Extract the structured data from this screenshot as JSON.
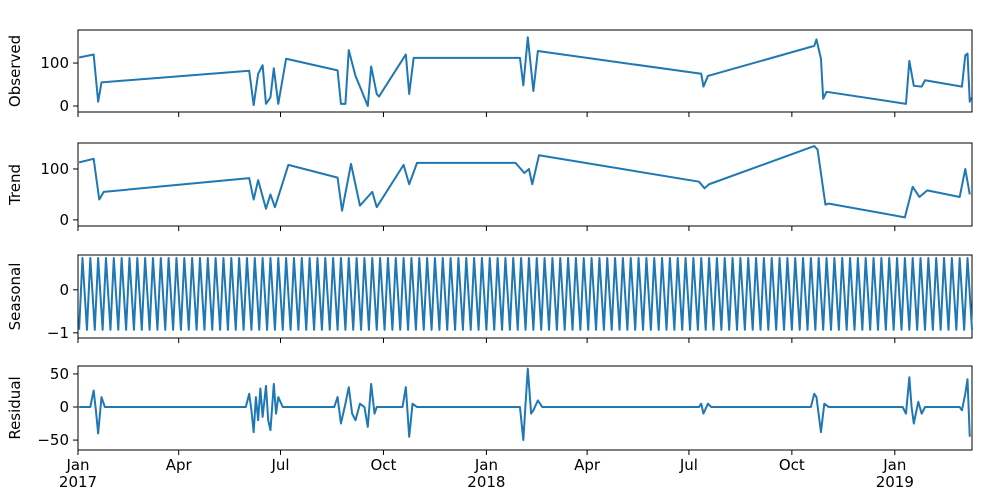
{
  "chart_data": [
    {
      "type": "line",
      "ylabel": "Observed",
      "color": "#1f77b4",
      "x": [
        "2017-01-02",
        "2017-01-15",
        "2017-01-19",
        "2017-01-22",
        "2017-06-03",
        "2017-06-07",
        "2017-06-11",
        "2017-06-15",
        "2017-06-18",
        "2017-06-22",
        "2017-06-25",
        "2017-06-29",
        "2017-07-06",
        "2017-08-21",
        "2017-08-24",
        "2017-08-28",
        "2017-08-31",
        "2017-09-06",
        "2017-09-10",
        "2017-09-17",
        "2017-09-20",
        "2017-09-25",
        "2017-09-27",
        "2017-10-21",
        "2017-10-24",
        "2017-10-28",
        "2018-01-31",
        "2018-02-03",
        "2018-02-07",
        "2018-02-12",
        "2018-02-16",
        "2018-07-12",
        "2018-07-14",
        "2018-07-18",
        "2018-10-21",
        "2018-10-23",
        "2018-10-27",
        "2018-10-29",
        "2018-11-01",
        "2019-01-11",
        "2019-01-14",
        "2019-01-18",
        "2019-01-25",
        "2019-01-28",
        "2019-03-02",
        "2019-03-05",
        "2019-03-07",
        "2019-03-09",
        "2019-03-10"
      ],
      "values": [
        113,
        120,
        10,
        55,
        82,
        2,
        75,
        95,
        5,
        20,
        88,
        5,
        110,
        83,
        5,
        5,
        130,
        70,
        45,
        0,
        92,
        28,
        22,
        120,
        28,
        112,
        112,
        48,
        160,
        35,
        128,
        75,
        45,
        70,
        140,
        155,
        110,
        17,
        33,
        5,
        105,
        47,
        45,
        60,
        45,
        118,
        122,
        10,
        20
      ],
      "xlim": [
        "2017-01-01",
        "2019-03-11"
      ],
      "ylim": [
        -14,
        177
      ],
      "yticks": [
        0,
        100
      ]
    },
    {
      "type": "line",
      "ylabel": "Trend",
      "color": "#1f77b4",
      "x": [
        "2017-01-02",
        "2017-01-15",
        "2017-01-20",
        "2017-01-24",
        "2017-06-03",
        "2017-06-07",
        "2017-06-11",
        "2017-06-18",
        "2017-06-22",
        "2017-06-26",
        "2017-07-08",
        "2017-08-21",
        "2017-08-25",
        "2017-09-02",
        "2017-09-10",
        "2017-09-21",
        "2017-09-25",
        "2017-10-19",
        "2017-10-24",
        "2017-10-31",
        "2018-01-27",
        "2018-02-04",
        "2018-02-08",
        "2018-02-11",
        "2018-02-17",
        "2018-07-10",
        "2018-07-15",
        "2018-07-19",
        "2018-10-21",
        "2018-10-24",
        "2018-10-31",
        "2018-11-03",
        "2019-01-10",
        "2019-01-17",
        "2019-01-23",
        "2019-01-30",
        "2019-02-28",
        "2019-03-05",
        "2019-03-09"
      ],
      "values": [
        113,
        120,
        40,
        55,
        82,
        40,
        78,
        22,
        50,
        25,
        108,
        83,
        18,
        110,
        28,
        55,
        25,
        108,
        70,
        112,
        112,
        92,
        100,
        70,
        127,
        75,
        62,
        70,
        145,
        138,
        30,
        32,
        5,
        65,
        45,
        58,
        45,
        100,
        50
      ],
      "xlim": [
        "2017-01-01",
        "2019-03-11"
      ],
      "ylim": [
        -12,
        151
      ],
      "yticks": [
        0,
        100
      ]
    },
    {
      "type": "line",
      "ylabel": "Seasonal",
      "color": "#1f77b4",
      "x": [
        "2017-01-02",
        "2017-01-05",
        "2017-01-09",
        "2017-01-12",
        "2017-01-16",
        "2017-01-19",
        "2017-01-23",
        "2017-01-26",
        "2017-01-30",
        "2017-02-02",
        "2017-02-06",
        "2017-02-09",
        "2017-02-13",
        "2017-02-16",
        "2017-02-20",
        "2017-02-23",
        "2017-02-27",
        "2017-03-02",
        "2017-03-06",
        "2017-03-09",
        "2017-03-13",
        "2017-03-16",
        "2017-03-20",
        "2017-03-23",
        "2017-03-27",
        "2017-03-30",
        "2017-04-03",
        "2017-04-06",
        "2017-04-10",
        "2017-04-13",
        "2017-04-17",
        "2017-04-20",
        "2017-04-24",
        "2017-04-27",
        "2017-05-01",
        "2017-05-04",
        "2017-05-08",
        "2017-05-11",
        "2017-05-15",
        "2017-05-18",
        "2017-05-22",
        "2017-05-25",
        "2017-05-29",
        "2017-06-01",
        "2017-06-05",
        "2017-06-08",
        "2017-06-12",
        "2017-06-15",
        "2017-06-19",
        "2017-06-22",
        "2017-06-26",
        "2017-06-29",
        "2017-07-03",
        "2017-07-06",
        "2017-07-10",
        "2017-07-13",
        "2017-07-17",
        "2017-07-20",
        "2017-07-24",
        "2017-07-27",
        "2017-07-31",
        "2017-08-03",
        "2017-08-07",
        "2017-08-10",
        "2017-08-14",
        "2017-08-17",
        "2017-08-21",
        "2017-08-24",
        "2017-08-28",
        "2017-08-31",
        "2017-09-04",
        "2017-09-07",
        "2017-09-11",
        "2017-09-14",
        "2017-09-18",
        "2017-09-21",
        "2017-09-25",
        "2017-09-28",
        "2017-10-02",
        "2017-10-05",
        "2017-10-09",
        "2017-10-12",
        "2017-10-16",
        "2017-10-19",
        "2017-10-23",
        "2017-10-26",
        "2017-10-30",
        "2017-11-02",
        "2017-11-06",
        "2017-11-09",
        "2017-11-13",
        "2017-11-16",
        "2017-11-20",
        "2017-11-23",
        "2017-11-27",
        "2017-11-30",
        "2017-12-04",
        "2017-12-07",
        "2017-12-11",
        "2017-12-14",
        "2017-12-18",
        "2017-12-21",
        "2017-12-25",
        "2017-12-28",
        "2018-01-01",
        "2018-01-04",
        "2018-01-08",
        "2018-01-11",
        "2018-01-15",
        "2018-01-18",
        "2018-01-22",
        "2018-01-25",
        "2018-01-29",
        "2018-02-01",
        "2018-02-05",
        "2018-02-08",
        "2018-02-12",
        "2018-02-15",
        "2018-02-19",
        "2018-02-22",
        "2018-02-26",
        "2018-03-01",
        "2018-03-05",
        "2018-03-08",
        "2018-03-12",
        "2018-03-15",
        "2018-03-19",
        "2018-03-22",
        "2018-03-26",
        "2018-03-29",
        "2018-04-02",
        "2018-04-05",
        "2018-04-09",
        "2018-04-12",
        "2018-04-16",
        "2018-04-19",
        "2018-04-23",
        "2018-04-26",
        "2018-04-30",
        "2018-05-03",
        "2018-05-07",
        "2018-05-10",
        "2018-05-14",
        "2018-05-17",
        "2018-05-21",
        "2018-05-24",
        "2018-05-28",
        "2018-05-31",
        "2018-06-04",
        "2018-06-07",
        "2018-06-11",
        "2018-06-14",
        "2018-06-18",
        "2018-06-21",
        "2018-06-25",
        "2018-06-28",
        "2018-07-02",
        "2018-07-05",
        "2018-07-09",
        "2018-07-12",
        "2018-07-16",
        "2018-07-19",
        "2018-07-23",
        "2018-07-26",
        "2018-07-30",
        "2018-08-02",
        "2018-08-06",
        "2018-08-09",
        "2018-08-13",
        "2018-08-16",
        "2018-08-20",
        "2018-08-23",
        "2018-08-27",
        "2018-08-30",
        "2018-09-03",
        "2018-09-06",
        "2018-09-10",
        "2018-09-13",
        "2018-09-17",
        "2018-09-20",
        "2018-09-24",
        "2018-09-27",
        "2018-10-01",
        "2018-10-04",
        "2018-10-08",
        "2018-10-11",
        "2018-10-15",
        "2018-10-18",
        "2018-10-22",
        "2018-10-25",
        "2018-10-29",
        "2018-11-01",
        "2018-11-05",
        "2018-11-08",
        "2018-11-12",
        "2018-11-15",
        "2018-11-19",
        "2018-11-22",
        "2018-11-26",
        "2018-11-29",
        "2018-12-03",
        "2018-12-06",
        "2018-12-10",
        "2018-12-13",
        "2018-12-17",
        "2018-12-20",
        "2018-12-24",
        "2018-12-27",
        "2018-12-31",
        "2019-01-03",
        "2019-01-07",
        "2019-01-10",
        "2019-01-14",
        "2019-01-17",
        "2019-01-21",
        "2019-01-24",
        "2019-01-28",
        "2019-01-31",
        "2019-02-04",
        "2019-02-07",
        "2019-02-11",
        "2019-02-14",
        "2019-02-18",
        "2019-02-21",
        "2019-02-25",
        "2019-02-28",
        "2019-03-04",
        "2019-03-07",
        "2019-03-11"
      ],
      "values": [
        -0.93,
        0.74,
        -0.93,
        0.74,
        -0.93,
        0.74,
        -0.93,
        0.74,
        -0.93,
        0.74,
        -0.93,
        0.74,
        -0.93,
        0.74,
        -0.93,
        0.74,
        -0.93,
        0.74,
        -0.93,
        0.74,
        -0.93,
        0.74,
        -0.93,
        0.74,
        -0.93,
        0.74,
        -0.93,
        0.74,
        -0.93,
        0.74,
        -0.93,
        0.74,
        -0.93,
        0.74,
        -0.93,
        0.74,
        -0.93,
        0.74,
        -0.93,
        0.74,
        -0.93,
        0.74,
        -0.93,
        0.74,
        -0.93,
        0.74,
        -0.93,
        0.74,
        -0.93,
        0.74,
        -0.93,
        0.74,
        -0.93,
        0.74,
        -0.93,
        0.74,
        -0.93,
        0.74,
        -0.93,
        0.74,
        -0.93,
        0.74,
        -0.93,
        0.74,
        -0.93,
        0.74,
        -0.93,
        0.74,
        -0.93,
        0.74,
        -0.93,
        0.74,
        -0.93,
        0.74,
        -0.93,
        0.74,
        -0.93,
        0.74,
        -0.93,
        0.74,
        -0.93,
        0.74,
        -0.93,
        0.74,
        -0.93,
        0.74,
        -0.93,
        0.74,
        -0.93,
        0.74,
        -0.93,
        0.74,
        -0.93,
        0.74,
        -0.93,
        0.74,
        -0.93,
        0.74,
        -0.93,
        0.74,
        -0.93,
        0.74,
        -0.93,
        0.74,
        -0.93,
        0.74,
        -0.93,
        0.74,
        -0.93,
        0.74,
        -0.93,
        0.74,
        -0.93,
        0.74,
        -0.93,
        0.74,
        -0.93,
        0.74,
        -0.93,
        0.74,
        -0.93,
        0.74,
        -0.93,
        0.74,
        -0.93,
        0.74,
        -0.93,
        0.74,
        -0.93,
        0.74,
        -0.93,
        0.74,
        -0.93,
        0.74,
        -0.93,
        0.74,
        -0.93,
        0.74,
        -0.93,
        0.74,
        -0.93,
        0.74,
        -0.93,
        0.74,
        -0.93,
        0.74,
        -0.93,
        0.74,
        -0.93,
        0.74,
        -0.93,
        0.74,
        -0.93,
        0.74,
        -0.93,
        0.74,
        -0.93,
        0.74,
        -0.93,
        0.74,
        -0.93,
        0.74,
        -0.93,
        0.74,
        -0.93,
        0.74,
        -0.93,
        0.74,
        -0.93,
        0.74,
        -0.93,
        0.74,
        -0.93,
        0.74,
        -0.93,
        0.74,
        -0.93,
        0.74,
        -0.93,
        0.74,
        -0.93,
        0.74,
        -0.93,
        0.74,
        -0.93,
        0.74,
        -0.93,
        0.74,
        -0.93,
        0.74,
        -0.93,
        0.74,
        -0.93,
        0.74,
        -0.93,
        0.74,
        -0.93,
        0.74,
        -0.93,
        0.74,
        -0.93,
        0.74,
        -0.93,
        0.74,
        -0.93,
        0.74,
        -0.93,
        0.74,
        -0.93,
        0.74,
        -0.93,
        0.74,
        -0.93,
        0.74,
        -0.93,
        0.74,
        -0.93,
        0.74,
        -0.93,
        0.74,
        -0.93,
        0.74,
        -0.93,
        0.74,
        -0.93,
        0.74,
        -0.93,
        0.74,
        -0.93
      ],
      "xlim": [
        "2017-01-01",
        "2019-03-11"
      ],
      "ylim": [
        -1.12,
        0.81
      ],
      "yticks": [
        {
          "value": -1,
          "label": "−1"
        },
        0
      ]
    },
    {
      "type": "line",
      "ylabel": "Residual",
      "color": "#1f77b4",
      "x": [
        "2017-01-02",
        "2017-01-12",
        "2017-01-15",
        "2017-01-17",
        "2017-01-19",
        "2017-01-22",
        "2017-01-25",
        "2017-05-31",
        "2017-06-03",
        "2017-06-05",
        "2017-06-07",
        "2017-06-09",
        "2017-06-11",
        "2017-06-13",
        "2017-06-15",
        "2017-06-18",
        "2017-06-20",
        "2017-06-22",
        "2017-06-25",
        "2017-06-27",
        "2017-06-29",
        "2017-07-03",
        "2017-08-18",
        "2017-08-21",
        "2017-08-24",
        "2017-08-28",
        "2017-08-31",
        "2017-09-03",
        "2017-09-06",
        "2017-09-10",
        "2017-09-14",
        "2017-09-17",
        "2017-09-20",
        "2017-09-23",
        "2017-09-25",
        "2017-10-18",
        "2017-10-21",
        "2017-10-24",
        "2017-10-27",
        "2017-10-31",
        "2018-01-31",
        "2018-02-03",
        "2018-02-05",
        "2018-02-07",
        "2018-02-10",
        "2018-02-12",
        "2018-02-16",
        "2018-02-20",
        "2018-07-10",
        "2018-07-12",
        "2018-07-14",
        "2018-07-18",
        "2018-07-21",
        "2018-10-18",
        "2018-10-21",
        "2018-10-23",
        "2018-10-27",
        "2018-10-30",
        "2018-11-03",
        "2019-01-08",
        "2019-01-11",
        "2019-01-14",
        "2019-01-16",
        "2019-01-18",
        "2019-01-22",
        "2019-01-25",
        "2019-01-28",
        "2019-02-28",
        "2019-03-02",
        "2019-03-05",
        "2019-03-07",
        "2019-03-09"
      ],
      "values": [
        0,
        0,
        25,
        -5,
        -40,
        15,
        0,
        0,
        20,
        -5,
        -38,
        15,
        -20,
        28,
        -15,
        32,
        -20,
        -35,
        35,
        -10,
        15,
        0,
        0,
        15,
        -25,
        5,
        30,
        -10,
        -20,
        5,
        0,
        -30,
        35,
        -10,
        0,
        0,
        30,
        -45,
        5,
        0,
        0,
        -50,
        5,
        58,
        -10,
        -5,
        10,
        0,
        0,
        5,
        -10,
        5,
        0,
        0,
        20,
        15,
        -38,
        5,
        0,
        0,
        -10,
        45,
        0,
        -25,
        8,
        -10,
        0,
        0,
        -5,
        20,
        42,
        -45
      ],
      "xlim": [
        "2017-01-01",
        "2019-03-11"
      ],
      "ylim": [
        -65,
        62
      ],
      "yticks": [
        {
          "value": -50,
          "label": "−50"
        },
        0,
        50
      ],
      "xticks": [
        {
          "value": "2017-01",
          "label": "Jan\n2017"
        },
        {
          "value": "2017-04",
          "label": "Apr"
        },
        {
          "value": "2017-07",
          "label": "Jul"
        },
        {
          "value": "2017-10",
          "label": "Oct"
        },
        {
          "value": "2018-01",
          "label": "Jan\n2018"
        },
        {
          "value": "2018-04",
          "label": "Apr"
        },
        {
          "value": "2018-07",
          "label": "Jul"
        },
        {
          "value": "2018-10",
          "label": "Oct"
        },
        {
          "value": "2019-01",
          "label": "Jan\n2019"
        }
      ]
    }
  ]
}
